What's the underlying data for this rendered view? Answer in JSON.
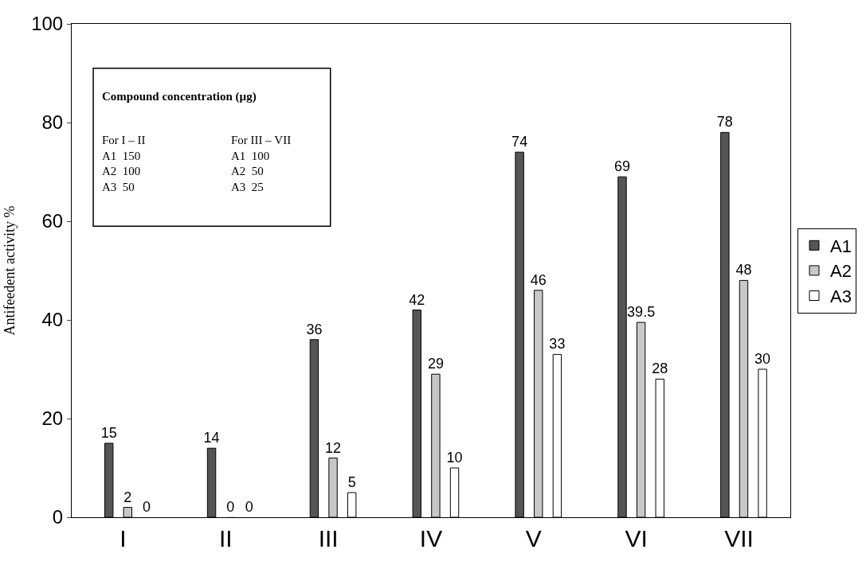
{
  "chart_data": {
    "type": "bar",
    "ylabel": "Antifeedent activity %",
    "categories": [
      "I",
      "II",
      "III",
      "IV",
      "V",
      "VI",
      "VII"
    ],
    "series": [
      {
        "name": "A1",
        "color": "#555555",
        "values": [
          15,
          14,
          36,
          42,
          74,
          69,
          78
        ]
      },
      {
        "name": "A2",
        "color": "#c8c8c8",
        "values": [
          2,
          0,
          12,
          29,
          46,
          39.5,
          48
        ]
      },
      {
        "name": "A3",
        "color": "#ffffff",
        "values": [
          0,
          0,
          5,
          10,
          33,
          28,
          30
        ]
      }
    ],
    "ylim": [
      0,
      100
    ],
    "yticks": [
      0,
      20,
      40,
      60,
      80,
      100
    ],
    "grid": false,
    "legend": "right",
    "data_labels": true,
    "annotations": [
      "Compound concentration (µg)",
      "For I – II\nA1  150\nA2  100\nA3  50",
      "For III – VII\nA1  100\nA2  50\nA3  25"
    ]
  }
}
